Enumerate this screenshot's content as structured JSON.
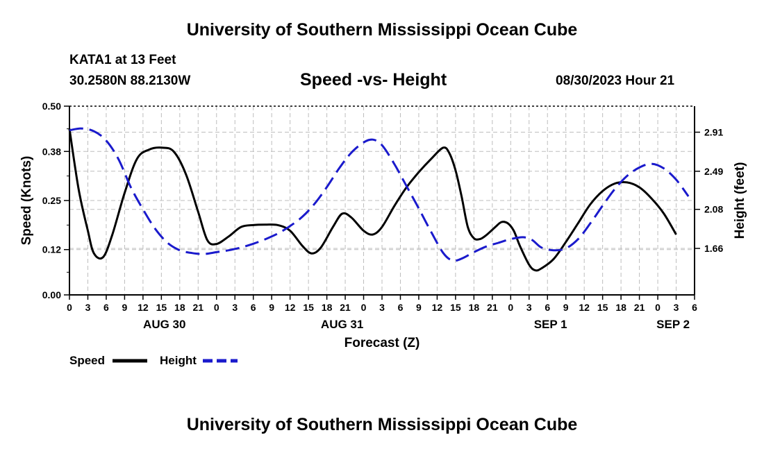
{
  "header": {
    "title": "University of Southern Mississippi Ocean Cube",
    "station": "KATA1 at 13 Feet",
    "coords": "30.2580N  88.2130W",
    "subtitle": "Speed -vs- Height",
    "datetime": "08/30/2023 Hour 21"
  },
  "footer": {
    "title": "University of Southern Mississippi Ocean Cube"
  },
  "colors": {
    "speed": "#000000",
    "height": "#1a1acc",
    "grid": "#bdbdbd"
  },
  "chart_data": {
    "type": "line",
    "title": "Speed -vs- Height",
    "xlabel": "Forecast (Z)",
    "ylabel": "Speed (Knots)",
    "y2label": "Height (feet)",
    "x_unit": "forecast hour from Aug 30 00Z",
    "xlim": [
      0,
      102
    ],
    "ylim": [
      0,
      0.5
    ],
    "y2lim": [
      1.16,
      3.19
    ],
    "x_tick_values": [
      0,
      3,
      6,
      9,
      12,
      15,
      18,
      21,
      24,
      27,
      30,
      33,
      36,
      39,
      42,
      45,
      48,
      51,
      54,
      57,
      60,
      63,
      66,
      69,
      72,
      75,
      78,
      81,
      84,
      87,
      90,
      93,
      96,
      99,
      102
    ],
    "x_tick_labels": [
      "0",
      "3",
      "6",
      "9",
      "12",
      "15",
      "18",
      "21",
      "0",
      "3",
      "6",
      "9",
      "12",
      "15",
      "18",
      "21",
      "0",
      "3",
      "6",
      "9",
      "12",
      "15",
      "18",
      "21",
      "0",
      "3",
      "6",
      "9",
      "12",
      "15",
      "18",
      "21",
      "0",
      "3",
      "6"
    ],
    "date_labels": [
      {
        "x": 15.5,
        "label": "AUG 30"
      },
      {
        "x": 44.5,
        "label": "AUG 31"
      },
      {
        "x": 78.5,
        "label": "SEP 1"
      },
      {
        "x": 98.5,
        "label": "SEP 2"
      }
    ],
    "y_ticks": [
      0.0,
      0.12,
      0.25,
      0.38,
      0.5
    ],
    "y_tick_labels": [
      "0.00",
      "0.12",
      "0.25",
      "0.38",
      "0.50"
    ],
    "y2_ticks": [
      1.66,
      2.08,
      2.49,
      2.91
    ],
    "y2_tick_labels": [
      "1.66",
      "2.08",
      "2.49",
      "2.91"
    ],
    "grid": true,
    "legend_position": "bottom-left",
    "series": [
      {
        "name": "Speed",
        "axis": "left",
        "style": "solid",
        "points": [
          [
            0,
            0.44
          ],
          [
            1.5,
            0.28
          ],
          [
            3,
            0.17
          ],
          [
            4,
            0.11
          ],
          [
            5.5,
            0.1
          ],
          [
            7,
            0.16
          ],
          [
            9,
            0.27
          ],
          [
            11,
            0.36
          ],
          [
            13,
            0.385
          ],
          [
            15,
            0.39
          ],
          [
            17,
            0.38
          ],
          [
            19,
            0.32
          ],
          [
            21,
            0.22
          ],
          [
            22.5,
            0.145
          ],
          [
            24,
            0.135
          ],
          [
            26,
            0.155
          ],
          [
            28,
            0.18
          ],
          [
            30,
            0.185
          ],
          [
            32,
            0.186
          ],
          [
            34,
            0.185
          ],
          [
            36,
            0.17
          ],
          [
            38,
            0.13
          ],
          [
            39.5,
            0.11
          ],
          [
            41,
            0.125
          ],
          [
            43,
            0.18
          ],
          [
            44.5,
            0.215
          ],
          [
            46,
            0.205
          ],
          [
            48,
            0.17
          ],
          [
            49.5,
            0.16
          ],
          [
            51,
            0.18
          ],
          [
            53,
            0.235
          ],
          [
            55,
            0.285
          ],
          [
            57,
            0.325
          ],
          [
            59,
            0.36
          ],
          [
            61,
            0.39
          ],
          [
            62,
            0.375
          ],
          [
            63,
            0.33
          ],
          [
            64,
            0.26
          ],
          [
            65,
            0.18
          ],
          [
            66,
            0.15
          ],
          [
            67,
            0.148
          ],
          [
            68,
            0.158
          ],
          [
            69.5,
            0.18
          ],
          [
            70.5,
            0.193
          ],
          [
            71.5,
            0.19
          ],
          [
            72.5,
            0.17
          ],
          [
            73.5,
            0.13
          ],
          [
            75,
            0.08
          ],
          [
            76,
            0.065
          ],
          [
            77,
            0.07
          ],
          [
            79,
            0.095
          ],
          [
            81,
            0.14
          ],
          [
            83,
            0.19
          ],
          [
            85,
            0.24
          ],
          [
            87,
            0.275
          ],
          [
            89,
            0.295
          ],
          [
            91,
            0.298
          ],
          [
            93,
            0.285
          ],
          [
            95,
            0.255
          ],
          [
            97,
            0.215
          ],
          [
            99,
            0.16
          ]
        ]
      },
      {
        "name": "Height",
        "axis": "right",
        "style": "dashed",
        "points": [
          [
            0,
            2.93
          ],
          [
            2,
            2.95
          ],
          [
            4,
            2.92
          ],
          [
            6,
            2.82
          ],
          [
            8,
            2.62
          ],
          [
            10,
            2.32
          ],
          [
            12,
            2.08
          ],
          [
            14,
            1.87
          ],
          [
            16,
            1.72
          ],
          [
            18,
            1.64
          ],
          [
            20,
            1.61
          ],
          [
            22,
            1.6
          ],
          [
            24,
            1.62
          ],
          [
            26,
            1.64
          ],
          [
            28,
            1.67
          ],
          [
            30,
            1.71
          ],
          [
            32,
            1.76
          ],
          [
            34,
            1.82
          ],
          [
            36,
            1.9
          ],
          [
            38,
            2.0
          ],
          [
            40,
            2.14
          ],
          [
            42,
            2.32
          ],
          [
            44,
            2.52
          ],
          [
            46,
            2.69
          ],
          [
            48,
            2.8
          ],
          [
            49.5,
            2.83
          ],
          [
            51,
            2.77
          ],
          [
            53,
            2.57
          ],
          [
            55,
            2.33
          ],
          [
            57,
            2.09
          ],
          [
            59,
            1.84
          ],
          [
            61,
            1.61
          ],
          [
            62.5,
            1.53
          ],
          [
            64,
            1.55
          ],
          [
            66,
            1.62
          ],
          [
            68,
            1.68
          ],
          [
            70,
            1.72
          ],
          [
            72,
            1.76
          ],
          [
            74,
            1.78
          ],
          [
            75.5,
            1.75
          ],
          [
            77,
            1.67
          ],
          [
            79,
            1.64
          ],
          [
            81,
            1.66
          ],
          [
            83,
            1.76
          ],
          [
            85,
            1.93
          ],
          [
            87,
            2.12
          ],
          [
            89,
            2.3
          ],
          [
            91,
            2.44
          ],
          [
            93,
            2.53
          ],
          [
            95,
            2.57
          ],
          [
            97,
            2.52
          ],
          [
            99,
            2.4
          ],
          [
            101,
            2.22
          ]
        ]
      }
    ]
  }
}
